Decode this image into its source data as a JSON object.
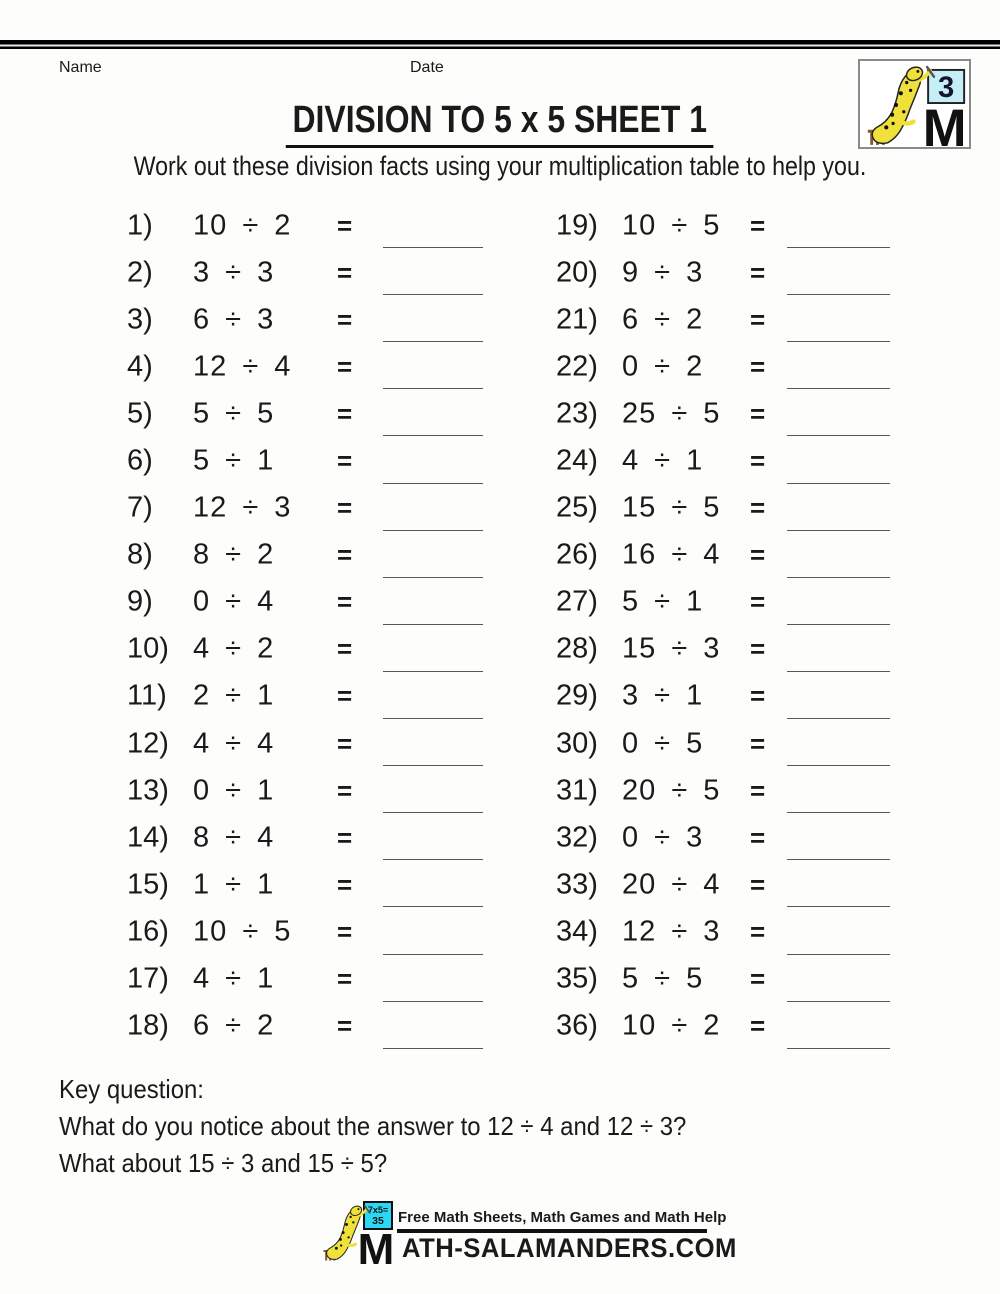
{
  "header": {
    "name_label": "Name",
    "date_label": "Date",
    "title": "DIVISION TO 5 x 5 SHEET 1",
    "instruction": "Work out these division facts using your multiplication table to help you."
  },
  "badge": {
    "icon": "salamander-writing-icon",
    "grade": "3",
    "m": "M"
  },
  "equals_sign": "=",
  "problems": [
    {
      "num": "1)",
      "expr": "10 ÷ 2"
    },
    {
      "num": "2)",
      "expr": "3 ÷ 3"
    },
    {
      "num": "3)",
      "expr": "6 ÷ 3"
    },
    {
      "num": "4)",
      "expr": "12 ÷ 4"
    },
    {
      "num": "5)",
      "expr": "5 ÷ 5"
    },
    {
      "num": "6)",
      "expr": "5 ÷ 1"
    },
    {
      "num": "7)",
      "expr": "12 ÷ 3"
    },
    {
      "num": "8)",
      "expr": "8 ÷ 2"
    },
    {
      "num": "9)",
      "expr": "0 ÷ 4"
    },
    {
      "num": "10)",
      "expr": "4 ÷ 2"
    },
    {
      "num": "11)",
      "expr": "2 ÷ 1"
    },
    {
      "num": "12)",
      "expr": "4 ÷ 4"
    },
    {
      "num": "13)",
      "expr": "0 ÷ 1"
    },
    {
      "num": "14)",
      "expr": "8 ÷ 4"
    },
    {
      "num": "15)",
      "expr": "1 ÷ 1"
    },
    {
      "num": "16)",
      "expr": "10 ÷ 5"
    },
    {
      "num": "17)",
      "expr": "4 ÷ 1"
    },
    {
      "num": "18)",
      "expr": "6 ÷ 2"
    },
    {
      "num": "19)",
      "expr": "10 ÷ 5"
    },
    {
      "num": "20)",
      "expr": "9 ÷ 3"
    },
    {
      "num": "21)",
      "expr": "6 ÷ 2"
    },
    {
      "num": "22)",
      "expr": "0 ÷ 2"
    },
    {
      "num": "23)",
      "expr": "25 ÷ 5"
    },
    {
      "num": "24)",
      "expr": "4 ÷ 1"
    },
    {
      "num": "25)",
      "expr": "15 ÷ 5"
    },
    {
      "num": "26)",
      "expr": "16 ÷ 4"
    },
    {
      "num": "27)",
      "expr": "5 ÷ 1"
    },
    {
      "num": "28)",
      "expr": "15 ÷ 3"
    },
    {
      "num": "29)",
      "expr": "3 ÷ 1"
    },
    {
      "num": "30)",
      "expr": "0 ÷ 5"
    },
    {
      "num": "31)",
      "expr": "20 ÷ 5"
    },
    {
      "num": "32)",
      "expr": "0 ÷ 3"
    },
    {
      "num": "33)",
      "expr": "20 ÷ 4"
    },
    {
      "num": "34)",
      "expr": "12 ÷ 3"
    },
    {
      "num": "35)",
      "expr": "5 ÷ 5"
    },
    {
      "num": "36)",
      "expr": "10 ÷ 2"
    }
  ],
  "key_question": {
    "heading": "Key question:",
    "line1": "What do you notice about the answer to 12 ÷ 4 and 12 ÷ 3?",
    "line2": "What about 15 ÷ 3 and 15 ÷ 5?"
  },
  "footer": {
    "logo_icon": "salamander-writing-icon",
    "board_line1": "7x5=",
    "board_line2": "35",
    "logo_m": "M",
    "tagline": "Free Math Sheets, Math Games and Math Help",
    "site_text": "ATH-SALAMANDERS.COM"
  },
  "colors": {
    "salamander_yellow": "#EFE13A",
    "badge_board_cyan": "#C6EEF7",
    "footer_board_cyan": "#2BD7F2",
    "answer_line_gray": "#585858"
  }
}
